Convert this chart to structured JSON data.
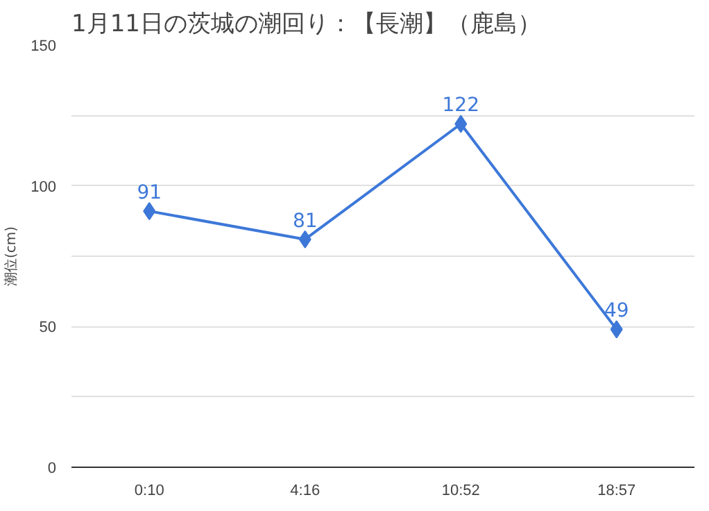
{
  "chart_data": {
    "type": "line",
    "title": "1月11日の茨城の潮回り：【長潮】（鹿島）",
    "ylabel": "潮位(cm)",
    "categories": [
      "0:10",
      "4:16",
      "10:52",
      "18:57"
    ],
    "series": [
      {
        "color": "#3d78d8",
        "values": [
          91,
          81,
          122,
          49
        ]
      }
    ],
    "ylim": [
      0,
      150
    ],
    "yticks": [
      0,
      {
        "value": 25,
        "label": null
      },
      50,
      {
        "value": 75,
        "label": null
      },
      100,
      {
        "value": 125,
        "label": null
      },
      150
    ],
    "grid": "y",
    "marker": "diamond",
    "line_style": "solid",
    "data_labels": true
  }
}
